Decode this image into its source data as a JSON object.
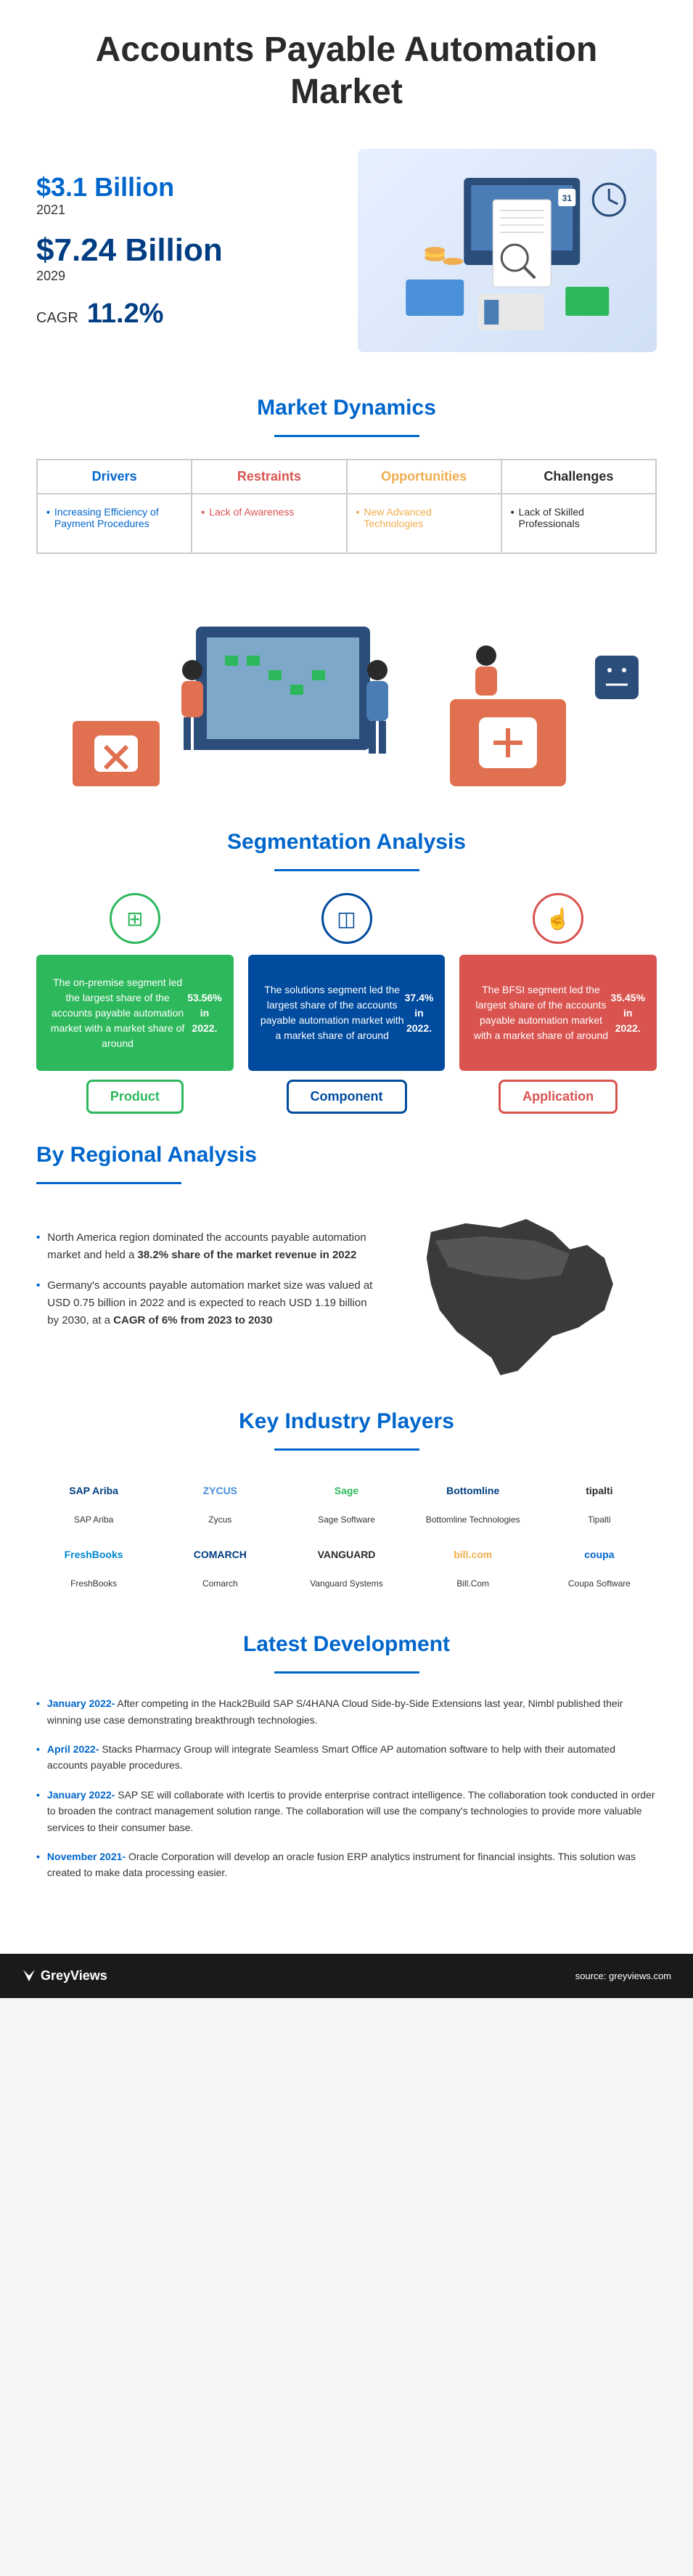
{
  "title": "Accounts Payable Automation Market",
  "hero": {
    "stat1_value": "$3.1 Billion",
    "stat1_year": "2021",
    "stat2_value": "$7.24 Billion",
    "stat2_year": "2029",
    "cagr_label": "CAGR",
    "cagr_value": "11.2%"
  },
  "dynamics": {
    "title": "Market Dynamics",
    "cols": [
      {
        "head": "Drivers",
        "head_color": "#0066cc",
        "bullet_color": "#0066cc",
        "items": [
          "Increasing Efficiency of Payment Procedures"
        ]
      },
      {
        "head": "Restraints",
        "head_color": "#d9534f",
        "bullet_color": "#d9534f",
        "items": [
          "Lack of Awareness"
        ]
      },
      {
        "head": "Opportunities",
        "head_color": "#f0ad4e",
        "bullet_color": "#f0ad4e",
        "items": [
          "New Advanced Technologies"
        ]
      },
      {
        "head": "Challenges",
        "head_color": "#2a2a2a",
        "bullet_color": "#2a2a2a",
        "items": [
          "Lack of Skilled Professionals"
        ]
      }
    ]
  },
  "segmentation": {
    "title": "Segmentation Analysis",
    "cards": [
      {
        "color": "#2eb85c",
        "icon": "⊞",
        "body": "The on-premise segment led the largest share of the accounts payable automation market with a market share of around 53.56% in 2022.",
        "label": "Product"
      },
      {
        "color": "#004b9e",
        "icon": "◫",
        "body": "The solutions segment led the largest share of the accounts payable automation market with a market share of around 37.4% in 2022.",
        "label": "Component"
      },
      {
        "color": "#d9534f",
        "icon": "☝",
        "body": "The BFSI segment led the largest share of the accounts payable automation market with a market share of around 35.45% in 2022.",
        "label": "Application"
      }
    ]
  },
  "regional": {
    "title": "By Regional Analysis",
    "bullets": [
      "North America region dominated the accounts payable automation market and held a <b>38.2% share of the market revenue in 2022</b>",
      "Germany's accounts payable automation market size was valued at USD 0.75 billion in 2022 and is expected to reach USD 1.19 billion by 2030, at a <b>CAGR of 6% from 2023 to 2030</b>"
    ]
  },
  "players": {
    "title": "Key Industry Players",
    "list": [
      {
        "logo": "SAP Ariba",
        "logo_color": "#003d82",
        "name": "SAP Ariba"
      },
      {
        "logo": "ZYCUS",
        "logo_color": "#4a90d9",
        "name": "Zycus"
      },
      {
        "logo": "Sage",
        "logo_color": "#2eb85c",
        "name": "Sage Software"
      },
      {
        "logo": "Bottomline",
        "logo_color": "#003d82",
        "name": "Bottomline Technologies"
      },
      {
        "logo": "tipalti",
        "logo_color": "#2a2a2a",
        "name": "Tipalti"
      },
      {
        "logo": "FreshBooks",
        "logo_color": "#0087d1",
        "name": "FreshBooks"
      },
      {
        "logo": "COMARCH",
        "logo_color": "#003d82",
        "name": "Comarch"
      },
      {
        "logo": "VANGUARD",
        "logo_color": "#2a2a2a",
        "name": "Vanguard Systems"
      },
      {
        "logo": "bill.com",
        "logo_color": "#f0ad4e",
        "name": "Bill.Com"
      },
      {
        "logo": "coupa",
        "logo_color": "#0066cc",
        "name": "Coupa Software"
      }
    ]
  },
  "development": {
    "title": "Latest Development",
    "items": [
      {
        "date": "January 2022-",
        "text": " After competing in the Hack2Build SAP S/4HANA Cloud Side-by-Side Extensions last year, Nimbl published their winning use case demonstrating breakthrough technologies."
      },
      {
        "date": "April 2022-",
        "text": " Stacks Pharmacy Group will integrate Seamless Smart Office AP automation software to help with their automated accounts payable procedures."
      },
      {
        "date": "January 2022-",
        "text": " SAP SE will collaborate with Icertis to provide enterprise contract intelligence. The collaboration took conducted in order to broaden the contract management solution range. The collaboration will use the company's technologies to provide more valuable services to their consumer base."
      },
      {
        "date": "November 2021-",
        "text": " Oracle Corporation will develop an oracle fusion ERP analytics instrument for financial insights. This solution was created to make data processing easier."
      }
    ]
  },
  "footer": {
    "logo": "GreyViews",
    "source_label": "source:",
    "source_value": "greyviews.com"
  },
  "colors": {
    "primary_blue": "#0066cc",
    "dark_blue": "#003d82",
    "green": "#2eb85c",
    "red": "#d9534f",
    "orange": "#f0ad4e",
    "dark": "#2a2a2a"
  }
}
